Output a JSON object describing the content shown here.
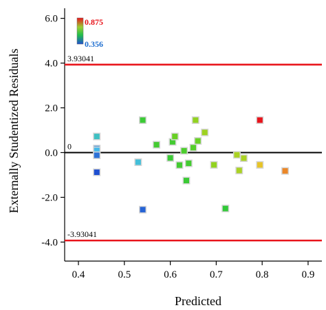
{
  "chart_data": {
    "type": "scatter",
    "title": "",
    "xlabel": "Predicted",
    "ylabel": "Externally Studentized Residuals",
    "xlim": [
      0.37,
      0.93
    ],
    "ylim": [
      -4.85,
      6.45
    ],
    "x_ticks": [
      {
        "value": 0.4,
        "label": "0.4"
      },
      {
        "value": 0.5,
        "label": "0.5"
      },
      {
        "value": 0.6,
        "label": "0.6"
      },
      {
        "value": 0.7,
        "label": "0.7"
      },
      {
        "value": 0.8,
        "label": "0.8"
      },
      {
        "value": 0.9,
        "label": "0.9"
      }
    ],
    "y_ticks": [
      {
        "value": 6.0,
        "label": "6.0"
      },
      {
        "value": 4.0,
        "label": "4.0"
      },
      {
        "value": 2.0,
        "label": "2.0"
      },
      {
        "value": 0.0,
        "label": "0.0"
      },
      {
        "value": -2.0,
        "label": "-2.0"
      },
      {
        "value": -4.0,
        "label": "-4.0"
      }
    ],
    "reference_lines": [
      {
        "value": 3.93041,
        "label": "3.93041",
        "color": "#e8141b"
      },
      {
        "value": 0,
        "label": "0",
        "color": "#000000"
      },
      {
        "value": -3.93041,
        "label": "-3.93041",
        "color": "#e8141b"
      }
    ],
    "color_scale": {
      "max_label": "0.875",
      "min_label": "0.356",
      "max_color": "#e8141b",
      "min_color": "#1f4fd0",
      "max": 0.875,
      "min": 0.356
    },
    "points": [
      {
        "x": 0.44,
        "y": 0.72,
        "c": 0.47
      },
      {
        "x": 0.44,
        "y": 0.18,
        "c": 0.4
      },
      {
        "x": 0.44,
        "y": 0.1,
        "c": 0.43
      },
      {
        "x": 0.44,
        "y": -0.12,
        "c": 0.38
      },
      {
        "x": 0.44,
        "y": -0.88,
        "c": 0.356
      },
      {
        "x": 0.53,
        "y": -0.43,
        "c": 0.45
      },
      {
        "x": 0.54,
        "y": 1.45,
        "c": 0.61
      },
      {
        "x": 0.54,
        "y": -2.55,
        "c": 0.37
      },
      {
        "x": 0.57,
        "y": 0.35,
        "c": 0.62
      },
      {
        "x": 0.6,
        "y": -0.24,
        "c": 0.61
      },
      {
        "x": 0.605,
        "y": 0.48,
        "c": 0.62
      },
      {
        "x": 0.61,
        "y": 0.72,
        "c": 0.66
      },
      {
        "x": 0.62,
        "y": -0.56,
        "c": 0.62
      },
      {
        "x": 0.63,
        "y": 0.08,
        "c": 0.63
      },
      {
        "x": 0.635,
        "y": -1.25,
        "c": 0.61
      },
      {
        "x": 0.64,
        "y": -0.48,
        "c": 0.62
      },
      {
        "x": 0.65,
        "y": 0.22,
        "c": 0.64
      },
      {
        "x": 0.655,
        "y": 1.45,
        "c": 0.7
      },
      {
        "x": 0.66,
        "y": 0.52,
        "c": 0.66
      },
      {
        "x": 0.675,
        "y": 0.9,
        "c": 0.71
      },
      {
        "x": 0.695,
        "y": -0.55,
        "c": 0.7
      },
      {
        "x": 0.72,
        "y": -2.5,
        "c": 0.6
      },
      {
        "x": 0.745,
        "y": -0.1,
        "c": 0.72
      },
      {
        "x": 0.75,
        "y": -0.8,
        "c": 0.72
      },
      {
        "x": 0.76,
        "y": -0.25,
        "c": 0.72
      },
      {
        "x": 0.795,
        "y": 1.45,
        "c": 0.875
      },
      {
        "x": 0.795,
        "y": -0.55,
        "c": 0.78
      },
      {
        "x": 0.85,
        "y": -0.82,
        "c": 0.82
      }
    ]
  }
}
